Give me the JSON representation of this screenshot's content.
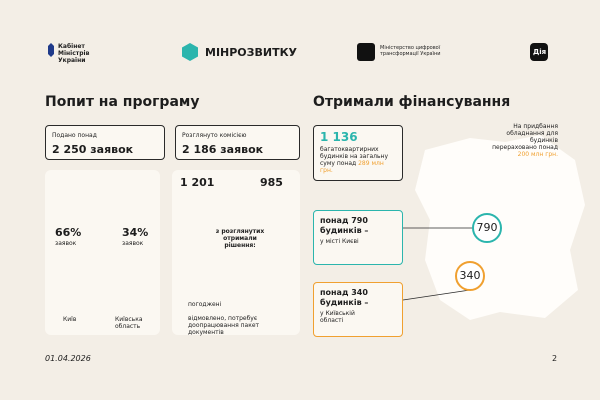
{
  "header": {
    "cabinet": "Кабінет Міністрів України",
    "ministry": "МІНРОЗВИТКУ",
    "digital": "Міністерство цифрової трансформації України",
    "diia": "Дія"
  },
  "left": {
    "title": "Попит на програму",
    "submitted": {
      "label": "Подано понад",
      "value": "2 250 заявок"
    },
    "reviewed": {
      "label": "Розглянуто комісією",
      "value": "2 186 заявок"
    },
    "split": {
      "names": [
        "Київ",
        "Київська область"
      ],
      "values": [
        66,
        34
      ],
      "value_labels": [
        "66%",
        "34%"
      ],
      "units": [
        "заявок",
        "заявок"
      ],
      "colors": [
        "#2bb5ad",
        "#e8345a"
      ]
    },
    "decision": {
      "values": [
        1201,
        985
      ],
      "value_labels": [
        "1 201",
        "985"
      ],
      "center": "з розглянутих отримали рішення:",
      "legend": [
        "погоджені",
        "відмовлено, потребує доопрацювання пакет документів"
      ],
      "colors": [
        "#2bb5ad",
        "#e8345a"
      ]
    }
  },
  "right": {
    "title": "Отримали фінансування",
    "total": {
      "value": "1 136",
      "text": "багатоквартирних будинків на загальну суму понад",
      "amount": "289 млн грн."
    },
    "equipment": {
      "text": "На придбання обладнання для будинків перераховано понад",
      "amount": "200 млн грн."
    },
    "kyiv": {
      "value": "понад 790 будинків –",
      "text": "у місті Києві",
      "badge": "790"
    },
    "region": {
      "value": "понад 340 будинків –",
      "text": "у Київській області",
      "badge": "340"
    }
  },
  "footer": {
    "date": "01.04.2026",
    "page": "2"
  }
}
